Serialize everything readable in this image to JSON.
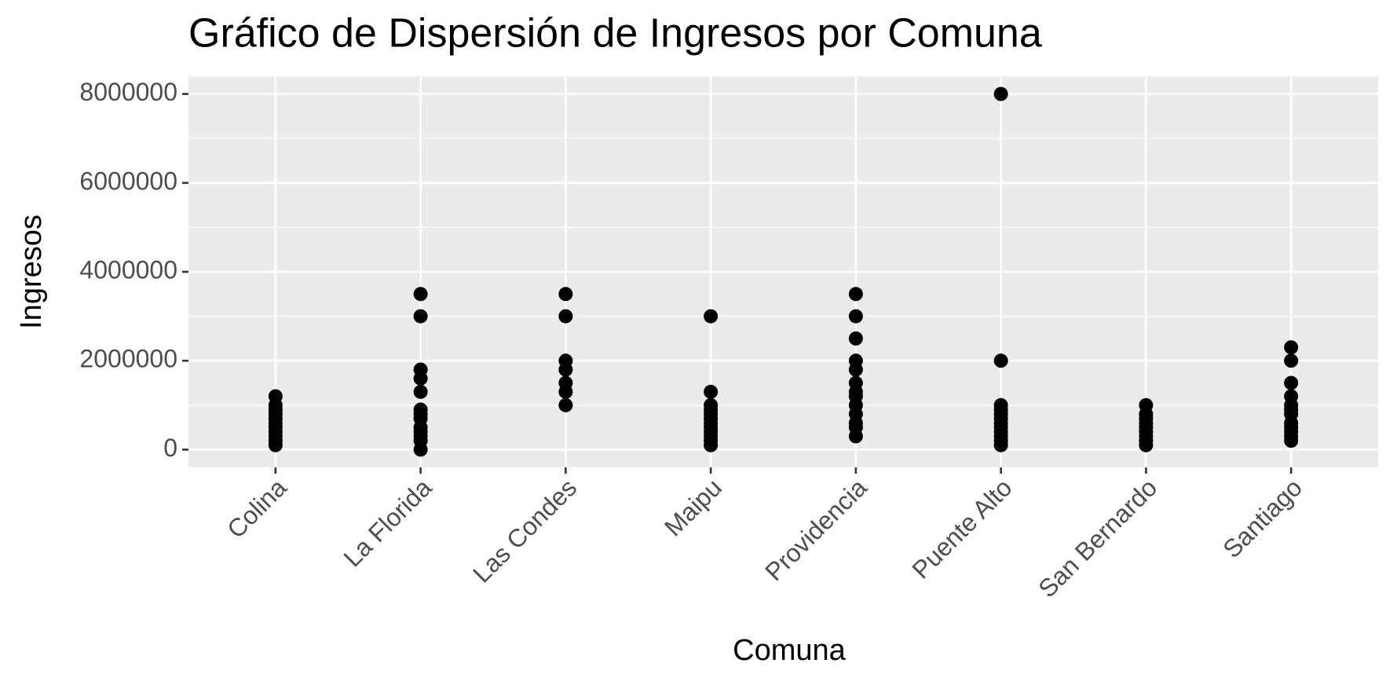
{
  "chart_data": {
    "type": "scatter",
    "title": "Gráfico de Dispersión de Ingresos por Comuna",
    "x_label": "Comuna",
    "y_label": "Ingresos",
    "categories": [
      "Colina",
      "La Florida",
      "Las Condes",
      "Maipu",
      "Providencia",
      "Puente Alto",
      "San Bernardo",
      "Santiago"
    ],
    "x": [
      "Colina",
      "Colina",
      "Colina",
      "Colina",
      "Colina",
      "Colina",
      "Colina",
      "Colina",
      "Colina",
      "Colina",
      "Colina",
      "La Florida",
      "La Florida",
      "La Florida",
      "La Florida",
      "La Florida",
      "La Florida",
      "La Florida",
      "La Florida",
      "La Florida",
      "La Florida",
      "La Florida",
      "La Florida",
      "La Florida",
      "Las Condes",
      "Las Condes",
      "Las Condes",
      "Las Condes",
      "Las Condes",
      "Las Condes",
      "Las Condes",
      "Maipu",
      "Maipu",
      "Maipu",
      "Maipu",
      "Maipu",
      "Maipu",
      "Maipu",
      "Maipu",
      "Maipu",
      "Maipu",
      "Maipu",
      "Maipu",
      "Providencia",
      "Providencia",
      "Providencia",
      "Providencia",
      "Providencia",
      "Providencia",
      "Providencia",
      "Providencia",
      "Providencia",
      "Providencia",
      "Providencia",
      "Providencia",
      "Providencia",
      "Puente Alto",
      "Puente Alto",
      "Puente Alto",
      "Puente Alto",
      "Puente Alto",
      "Puente Alto",
      "Puente Alto",
      "Puente Alto",
      "Puente Alto",
      "Puente Alto",
      "Puente Alto",
      "Puente Alto",
      "San Bernardo",
      "San Bernardo",
      "San Bernardo",
      "San Bernardo",
      "San Bernardo",
      "San Bernardo",
      "San Bernardo",
      "San Bernardo",
      "San Bernardo",
      "Santiago",
      "Santiago",
      "Santiago",
      "Santiago",
      "Santiago",
      "Santiago",
      "Santiago",
      "Santiago",
      "Santiago",
      "Santiago",
      "Santiago",
      "Santiago"
    ],
    "values": [
      1200000,
      1000000,
      900000,
      800000,
      700000,
      600000,
      500000,
      400000,
      300000,
      200000,
      100000,
      3500000,
      3000000,
      1800000,
      1600000,
      1300000,
      900000,
      800000,
      700000,
      500000,
      400000,
      300000,
      200000,
      0,
      3500000,
      3000000,
      2000000,
      1800000,
      1500000,
      1300000,
      1000000,
      3000000,
      1300000,
      1000000,
      900000,
      800000,
      700000,
      600000,
      500000,
      400000,
      300000,
      200000,
      100000,
      3500000,
      3000000,
      2500000,
      2000000,
      1800000,
      1500000,
      1300000,
      1200000,
      1000000,
      800000,
      600000,
      500000,
      300000,
      8000000,
      2000000,
      1000000,
      900000,
      800000,
      700000,
      600000,
      500000,
      400000,
      300000,
      200000,
      100000,
      1000000,
      800000,
      700000,
      600000,
      500000,
      400000,
      300000,
      200000,
      100000,
      2300000,
      2000000,
      1500000,
      1200000,
      1000000,
      900000,
      800000,
      600000,
      500000,
      400000,
      300000,
      200000
    ],
    "color": "#000000",
    "ylim": [
      -400000,
      8400000
    ],
    "yticks": [
      0,
      2000000,
      4000000,
      6000000,
      8000000
    ],
    "grid": true
  }
}
